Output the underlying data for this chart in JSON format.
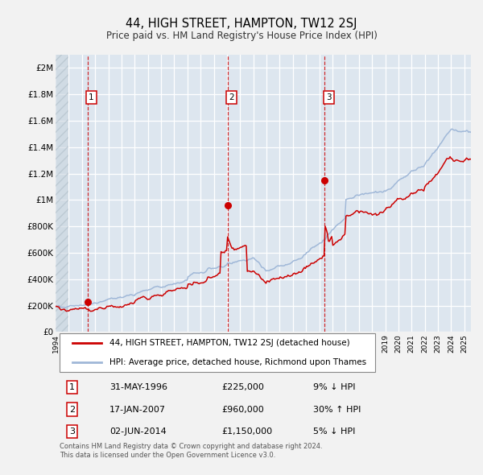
{
  "title": "44, HIGH STREET, HAMPTON, TW12 2SJ",
  "subtitle": "Price paid vs. HM Land Registry's House Price Index (HPI)",
  "line1_label": "44, HIGH STREET, HAMPTON, TW12 2SJ (detached house)",
  "line2_label": "HPI: Average price, detached house, Richmond upon Thames",
  "line1_color": "#cc0000",
  "line2_color": "#a0b8d8",
  "background_color": "#f2f2f2",
  "plot_bg_color": "#dde6ef",
  "grid_color": "#ffffff",
  "sale_points": [
    {
      "label": "1",
      "date": "31-MAY-1996",
      "year": 1996.42,
      "price": 225000,
      "relation": "9% ↓ HPI"
    },
    {
      "label": "2",
      "date": "17-JAN-2007",
      "year": 2007.04,
      "price": 960000,
      "relation": "30% ↑ HPI"
    },
    {
      "label": "3",
      "date": "02-JUN-2014",
      "year": 2014.42,
      "price": 1150000,
      "relation": "5% ↓ HPI"
    }
  ],
  "ylabel_ticks": [
    0,
    200000,
    400000,
    600000,
    800000,
    1000000,
    1200000,
    1400000,
    1600000,
    1800000,
    2000000
  ],
  "ylabel_labels": [
    "£0",
    "£200K",
    "£400K",
    "£600K",
    "£800K",
    "£1M",
    "£1.2M",
    "£1.4M",
    "£1.6M",
    "£1.8M",
    "£2M"
  ],
  "xmin": 1994.0,
  "xmax": 2025.5,
  "ymin": 0,
  "ymax": 2100000,
  "footer": "Contains HM Land Registry data © Crown copyright and database right 2024.\nThis data is licensed under the Open Government Licence v3.0."
}
